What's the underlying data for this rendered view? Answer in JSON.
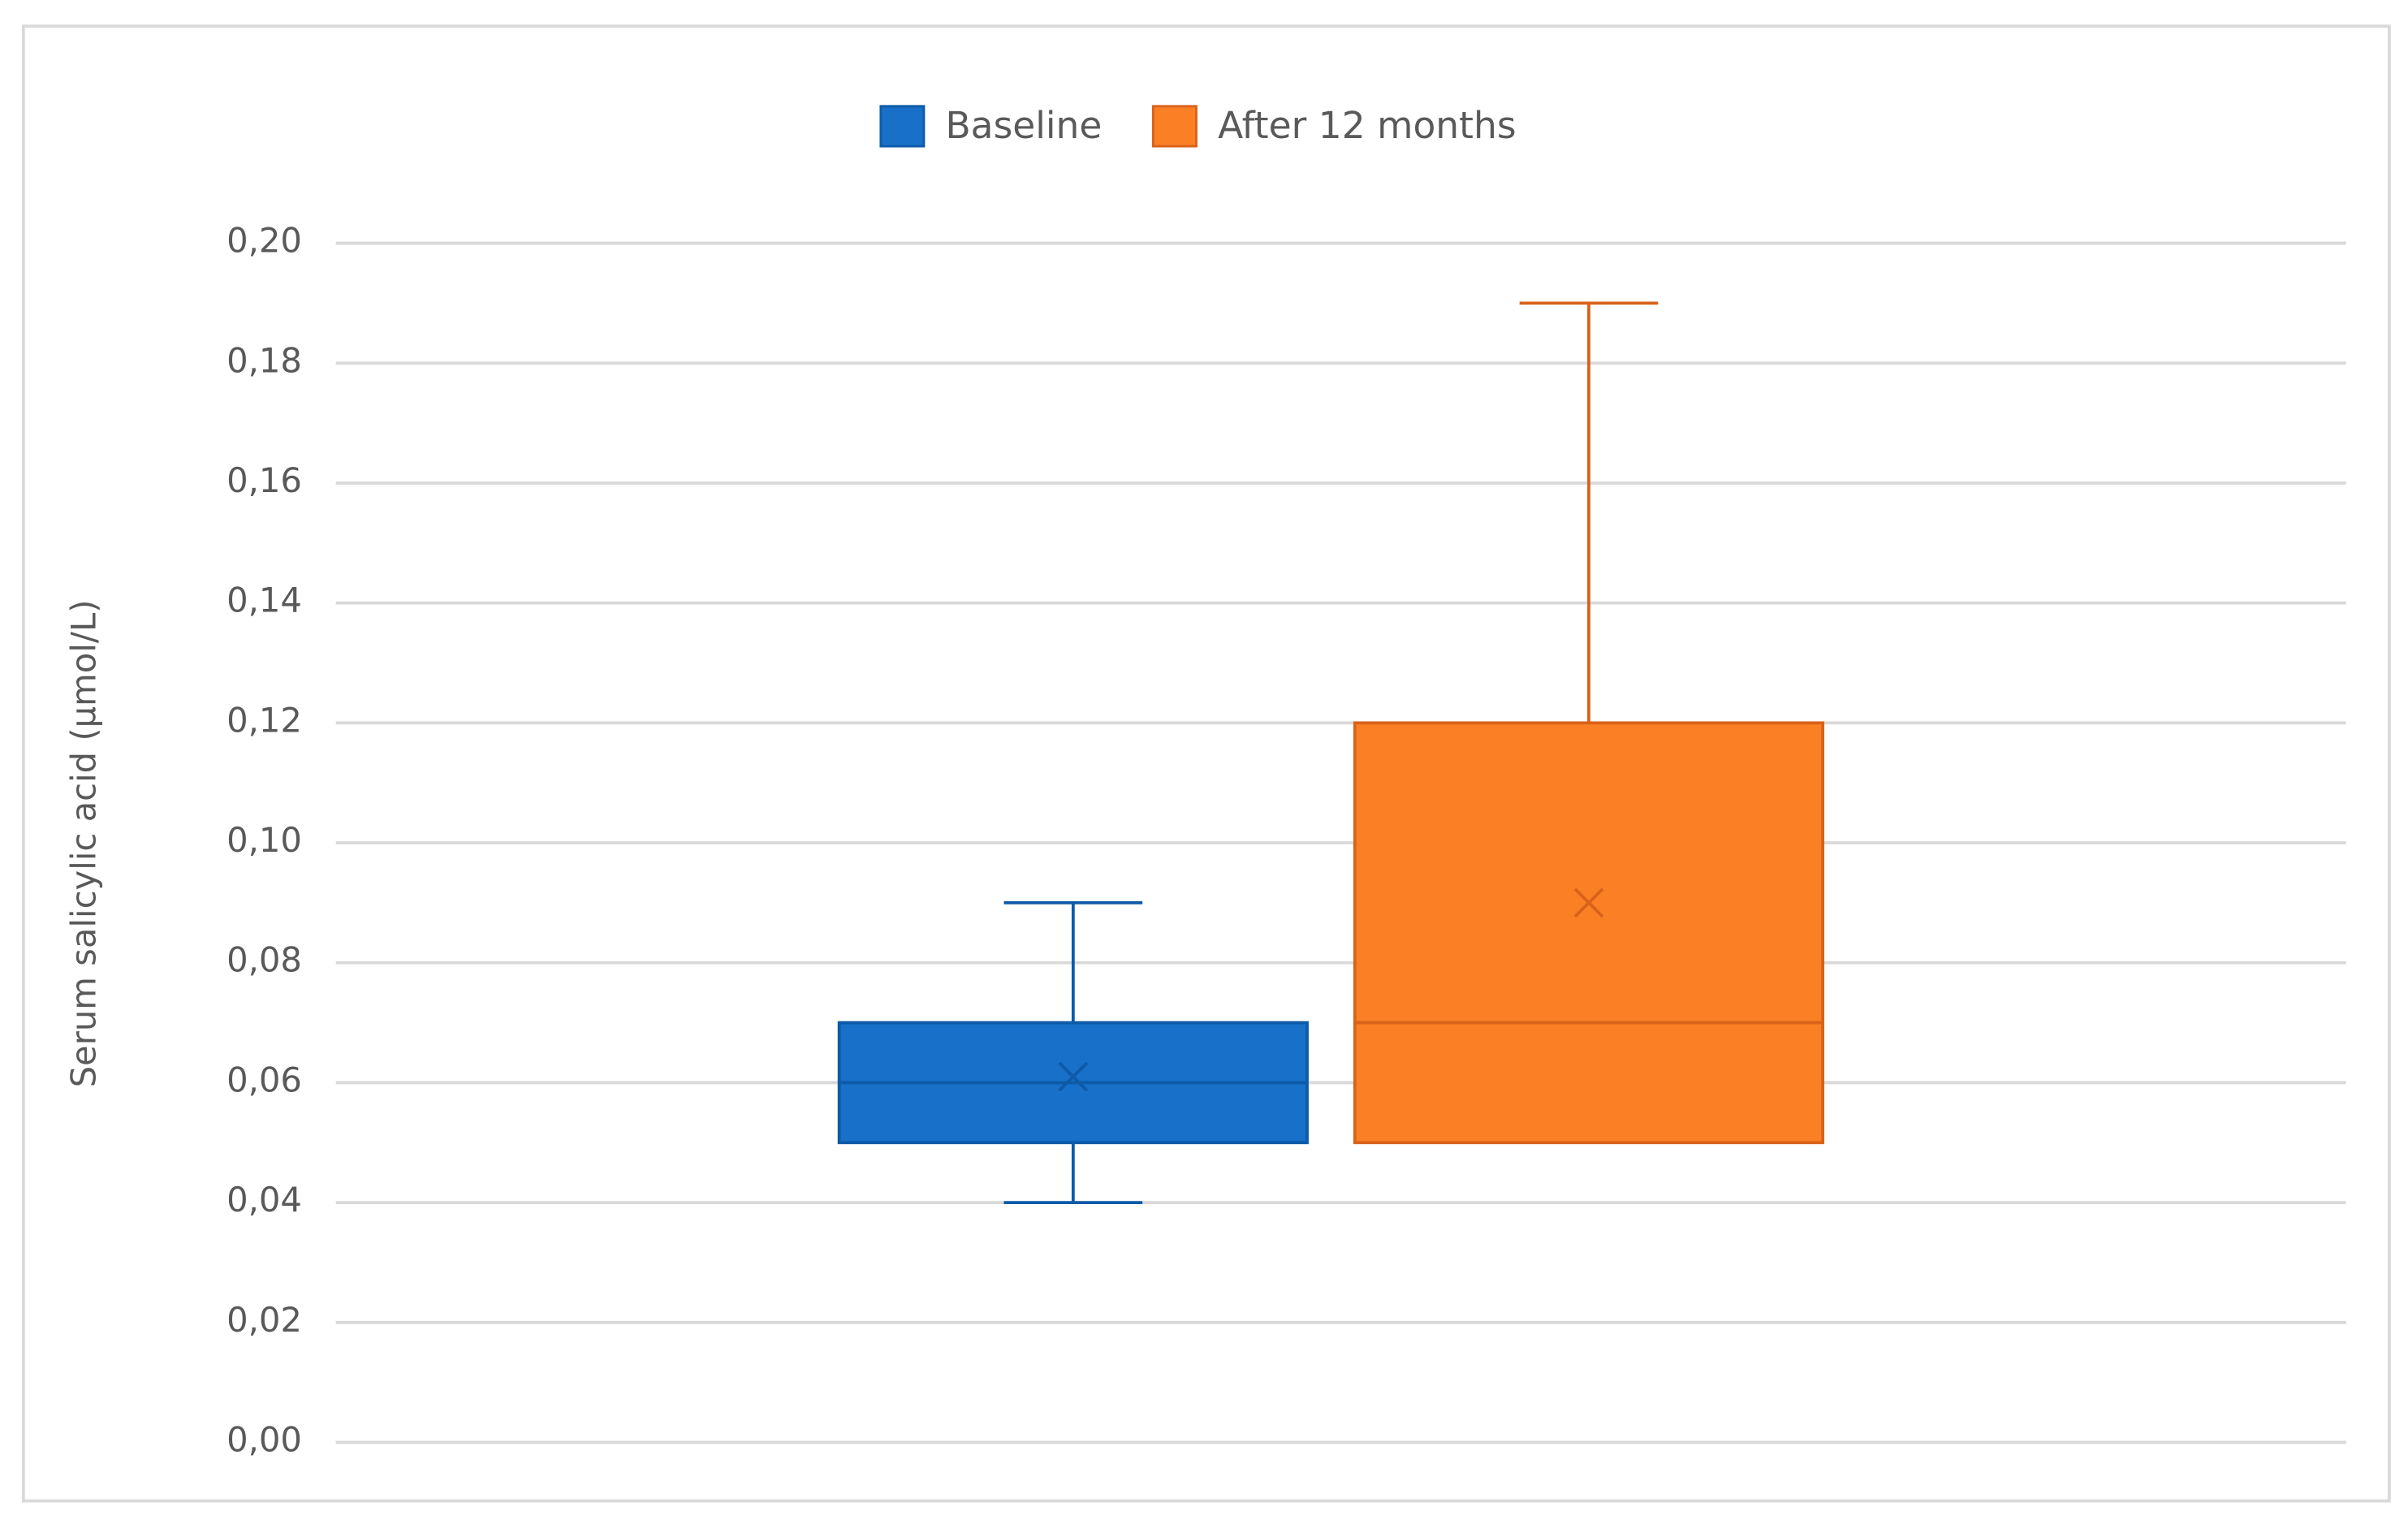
{
  "chart_data": {
    "type": "box",
    "y_label": "Serum salicylic acid (µmol/L)",
    "ylim": [
      0,
      0.2
    ],
    "yticks": [
      {
        "value": 0,
        "label": "0,00"
      },
      {
        "value": 0.02,
        "label": "0,02"
      },
      {
        "value": 0.04,
        "label": "0,04"
      },
      {
        "value": 0.06,
        "label": "0,06"
      },
      {
        "value": 0.08,
        "label": "0,08"
      },
      {
        "value": 0.1,
        "label": "0,10"
      },
      {
        "value": 0.12,
        "label": "0,12"
      },
      {
        "value": 0.14,
        "label": "0,14"
      },
      {
        "value": 0.16,
        "label": "0,16"
      },
      {
        "value": 0.18,
        "label": "0,18"
      },
      {
        "value": 0.2,
        "label": "0,20"
      }
    ],
    "grid": true,
    "legend": "top",
    "series": [
      {
        "name": "Baseline",
        "color": "#1870c8",
        "edge": "#0d5aa8",
        "min": 0.04,
        "q1": 0.05,
        "median": 0.06,
        "q3": 0.07,
        "max": 0.09,
        "mean": 0.061
      },
      {
        "name": "After 12 months",
        "color": "#fb8025",
        "edge": "#d9621a",
        "min": 0.05,
        "q1": 0.05,
        "median": 0.07,
        "q3": 0.12,
        "max": 0.19,
        "mean": 0.09
      }
    ]
  }
}
